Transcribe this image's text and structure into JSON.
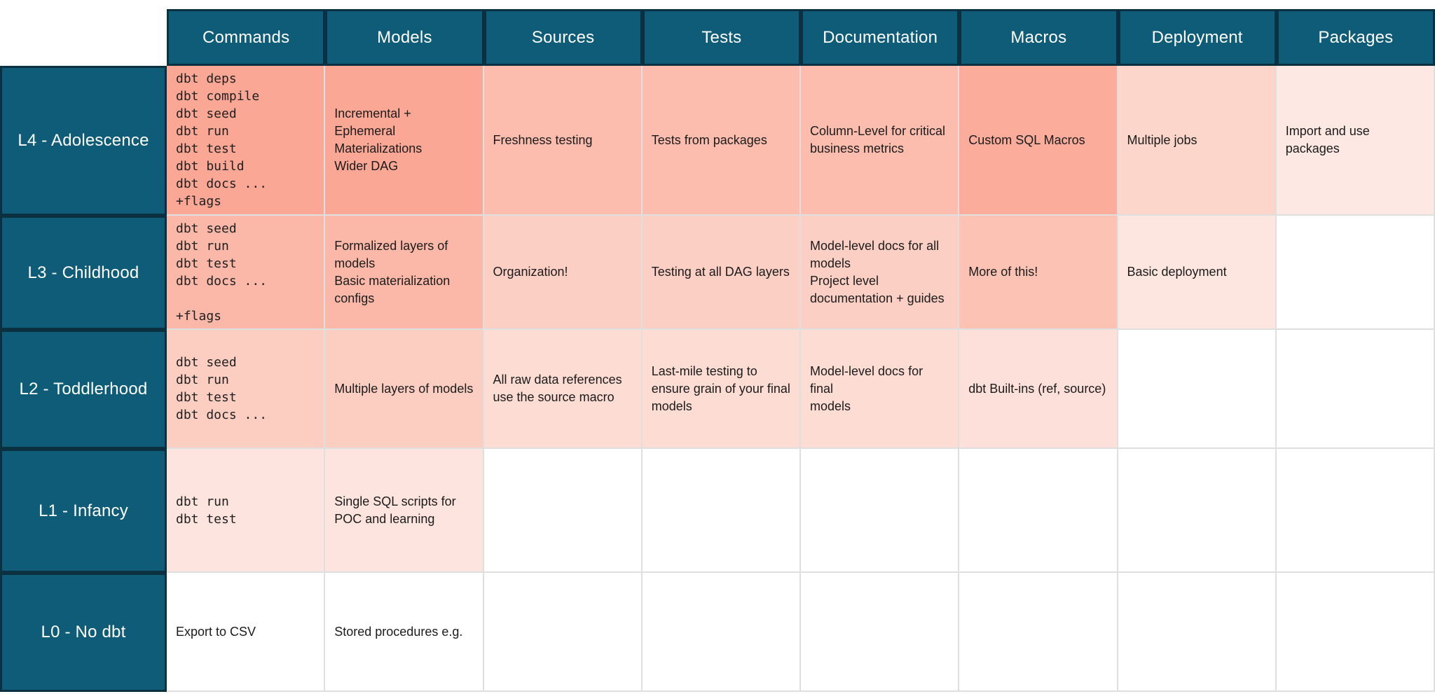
{
  "colors": {
    "header_bg": "#0e5c77",
    "header_border": "#0b3140",
    "header_text": "#ffffff",
    "grid_border": "#dfdfdf",
    "body_text": "#1b1b1b"
  },
  "table": {
    "columns": [
      "Commands",
      "Models",
      "Sources",
      "Tests",
      "Documentation",
      "Macros",
      "Deployment",
      "Packages"
    ],
    "rows": [
      {
        "label": "L4 - Adolescence",
        "cells": [
          {
            "text": "dbt deps\ndbt compile\ndbt seed\ndbt run\ndbt test\ndbt build\ndbt docs ...\n+flags",
            "mono": true,
            "bg": "#fba795"
          },
          {
            "text": "Incremental +\nEphemeral\nMaterializations\nWider DAG",
            "bg": "#fba795"
          },
          {
            "text": "Freshness testing",
            "bg": "#fcbdae"
          },
          {
            "text": "Tests from packages",
            "bg": "#fcbdae"
          },
          {
            "text": "Column-Level for critical\nbusiness metrics",
            "bg": "#fcbdae"
          },
          {
            "text": "Custom SQL Macros",
            "bg": "#fbac9a"
          },
          {
            "text": "Multiple jobs",
            "bg": "#fcd5cb"
          },
          {
            "text": "Import and use packages",
            "bg": "#fde8e3"
          }
        ]
      },
      {
        "label": "L3 - Childhood",
        "cells": [
          {
            "text": "dbt seed\ndbt run\ndbt test\ndbt docs ...\n\n+flags",
            "mono": true,
            "bg": "#fbb8a8"
          },
          {
            "text": "Formalized layers of\nmodels\nBasic materialization\nconfigs",
            "bg": "#fbb8a8"
          },
          {
            "text": "Organization!",
            "bg": "#fccfc4"
          },
          {
            "text": "Testing at all DAG layers",
            "bg": "#fccfc4"
          },
          {
            "text": "Model-level docs for all\nmodels\nProject level\ndocumentation + guides",
            "bg": "#fccfc4"
          },
          {
            "text": "More of this!",
            "bg": "#fcc3b5"
          },
          {
            "text": "Basic deployment",
            "bg": "#fde6e0"
          },
          {
            "text": "",
            "bg": "#ffffff"
          }
        ]
      },
      {
        "label": "L2 - Toddlerhood",
        "cells": [
          {
            "text": "dbt seed\ndbt run\ndbt test\ndbt docs ...",
            "mono": true,
            "bg": "#fccec2"
          },
          {
            "text": "Multiple layers of models",
            "bg": "#fccec2"
          },
          {
            "text": "All raw data references\nuse the source macro",
            "bg": "#fddcd4"
          },
          {
            "text": "Last-mile testing to\nensure grain of your final\nmodels",
            "bg": "#fddcd4"
          },
          {
            "text": "Model-level docs for final\nmodels",
            "bg": "#fddcd4"
          },
          {
            "text": "dbt Built-ins (ref, source)",
            "bg": "#fde0d9"
          },
          {
            "text": "",
            "bg": "#ffffff"
          },
          {
            "text": "",
            "bg": "#ffffff"
          }
        ]
      },
      {
        "label": "L1 - Infancy",
        "cells": [
          {
            "text": "dbt run\ndbt test",
            "mono": true,
            "bg": "#fde4de"
          },
          {
            "text": "Single SQL scripts for\nPOC and learning",
            "bg": "#fde4de"
          },
          {
            "text": "",
            "bg": "#ffffff"
          },
          {
            "text": "",
            "bg": "#ffffff"
          },
          {
            "text": "",
            "bg": "#ffffff"
          },
          {
            "text": "",
            "bg": "#ffffff"
          },
          {
            "text": "",
            "bg": "#ffffff"
          },
          {
            "text": "",
            "bg": "#ffffff"
          }
        ]
      },
      {
        "label": "L0 - No dbt",
        "cells": [
          {
            "text": "Export to CSV",
            "bg": "#ffffff"
          },
          {
            "text": "Stored procedures e.g.",
            "bg": "#ffffff"
          },
          {
            "text": "",
            "bg": "#ffffff"
          },
          {
            "text": "",
            "bg": "#ffffff"
          },
          {
            "text": "",
            "bg": "#ffffff"
          },
          {
            "text": "",
            "bg": "#ffffff"
          },
          {
            "text": "",
            "bg": "#ffffff"
          },
          {
            "text": "",
            "bg": "#ffffff"
          }
        ]
      }
    ]
  }
}
